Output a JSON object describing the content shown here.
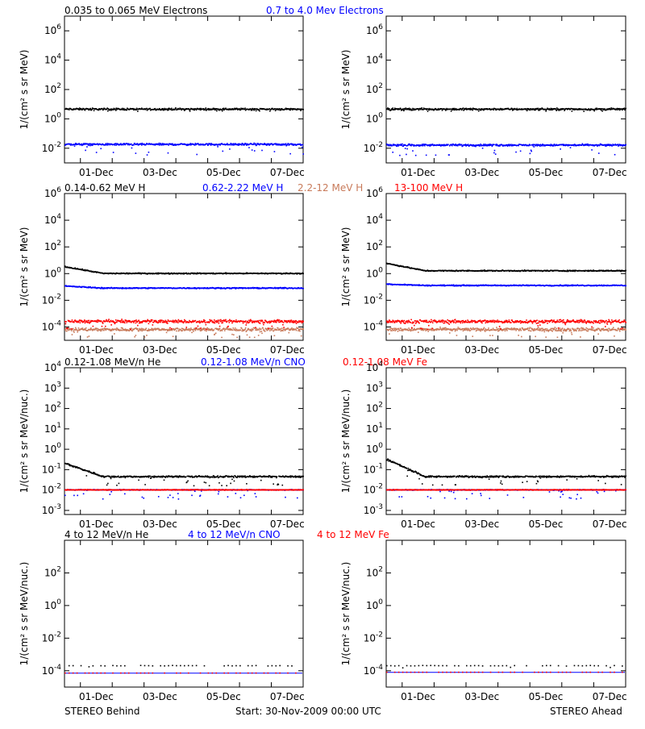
{
  "colors": {
    "black": "#000000",
    "blue": "#0000ff",
    "red": "#ff0000",
    "salmon": "#c87a5a"
  },
  "footer": {
    "left": "STEREO Behind",
    "center": "Start: 30-Nov-2009 00:00 UTC",
    "right": "STEREO Ahead"
  },
  "x_ticks": [
    "01-Dec",
    "03-Dec",
    "05-Dec",
    "07-Dec"
  ],
  "chart_data": [
    {
      "type": "scatter",
      "row": "electrons",
      "legend": [
        {
          "text": "0.035 to 0.065 MeV Electrons",
          "color": "black"
        },
        {
          "text": "0.7 to 4.0 Mev Electrons",
          "color": "blue"
        }
      ],
      "ylabel": "1/(cm² s sr MeV)",
      "ylim_log10": [
        -3,
        7
      ],
      "yticks": [
        "10^-2",
        "10^0",
        "10^2",
        "10^4",
        "10^6"
      ],
      "xlim_days": [
        0,
        7.5
      ],
      "panels": [
        {
          "spacecraft": "STEREO Behind",
          "series": [
            {
              "color": "black",
              "level_log10": 0.65,
              "scatter": 0.08,
              "outliers": 0.1
            },
            {
              "color": "blue",
              "level_log10": -1.75,
              "scatter": 0.08,
              "outliers": 0.5
            }
          ]
        },
        {
          "spacecraft": "STEREO Ahead",
          "series": [
            {
              "color": "black",
              "level_log10": 0.65,
              "scatter": 0.08,
              "outliers": 0.1
            },
            {
              "color": "blue",
              "level_log10": -1.8,
              "scatter": 0.08,
              "outliers": 0.5
            }
          ]
        }
      ]
    },
    {
      "type": "scatter",
      "row": "protons",
      "legend": [
        {
          "text": "0.14-0.62 MeV H",
          "color": "black"
        },
        {
          "text": "0.62-2.22 MeV H",
          "color": "blue"
        },
        {
          "text": "2.2-12 MeV H",
          "color": "salmon"
        },
        {
          "text": "13-100 MeV H",
          "color": "red"
        }
      ],
      "ylabel": "1/(cm² s sr MeV)",
      "ylim_log10": [
        -5,
        6
      ],
      "yticks": [
        "10^-4",
        "10^-2",
        "10^0",
        "10^2",
        "10^4",
        "10^6"
      ],
      "xlim_days": [
        0,
        7.5
      ],
      "panels": [
        {
          "spacecraft": "STEREO Behind",
          "series": [
            {
              "color": "black",
              "level_log10": 0.0,
              "start_log10": 0.5,
              "scatter": 0.05,
              "outliers": 0
            },
            {
              "color": "blue",
              "level_log10": -1.1,
              "start_log10": -0.95,
              "scatter": 0.05,
              "outliers": 0
            },
            {
              "color": "salmon",
              "level_log10": -4.2,
              "scatter": 0.15,
              "outliers": 0.4
            },
            {
              "color": "red",
              "level_log10": -3.6,
              "scatter": 0.15,
              "outliers": 0.4
            }
          ]
        },
        {
          "spacecraft": "STEREO Ahead",
          "series": [
            {
              "color": "black",
              "level_log10": 0.2,
              "start_log10": 0.75,
              "scatter": 0.05,
              "outliers": 0
            },
            {
              "color": "blue",
              "level_log10": -0.9,
              "start_log10": -0.8,
              "scatter": 0.05,
              "outliers": 0
            },
            {
              "color": "salmon",
              "level_log10": -4.2,
              "scatter": 0.15,
              "outliers": 0.4
            },
            {
              "color": "red",
              "level_log10": -3.6,
              "scatter": 0.15,
              "outliers": 0.4
            }
          ]
        }
      ]
    },
    {
      "type": "scatter",
      "row": "heavy-low",
      "legend": [
        {
          "text": "0.12-1.08 MeV/n He",
          "color": "black"
        },
        {
          "text": "0.12-1.08 MeV/n CNO",
          "color": "blue"
        },
        {
          "text": "0.12-1.08 MeV Fe",
          "color": "red"
        }
      ],
      "ylabel": "1/(cm² s sr MeV/nuc.)",
      "ylim_log10": [
        -3.2,
        4
      ],
      "yticks": [
        "10^-3",
        "10^-2",
        "10^-1",
        "10^0",
        "10^1",
        "10^2",
        "10^3",
        "10^4"
      ],
      "xlim_days": [
        0,
        7.5
      ],
      "panels": [
        {
          "spacecraft": "STEREO Behind",
          "series": [
            {
              "color": "black",
              "level_log10": -1.35,
              "start_log10": -0.7,
              "scatter": 0.05,
              "outliers": 0.3
            },
            {
              "color": "blue",
              "level_log10": -2.0,
              "scatter": 0.02,
              "outliers": 0.3
            },
            {
              "color": "red",
              "level_log10": -2.0,
              "scatter": 0.02,
              "outliers": 0
            }
          ]
        },
        {
          "spacecraft": "STEREO Ahead",
          "series": [
            {
              "color": "black",
              "level_log10": -1.35,
              "start_log10": -0.5,
              "scatter": 0.05,
              "outliers": 0.3
            },
            {
              "color": "blue",
              "level_log10": -2.0,
              "scatter": 0.02,
              "outliers": 0.3
            },
            {
              "color": "red",
              "level_log10": -2.0,
              "scatter": 0.02,
              "outliers": 0
            }
          ]
        }
      ]
    },
    {
      "type": "scatter",
      "row": "heavy-high",
      "legend": [
        {
          "text": "4 to 12 MeV/n He",
          "color": "black"
        },
        {
          "text": "4 to 12 MeV/n CNO",
          "color": "blue"
        },
        {
          "text": "4 to 12 MeV Fe",
          "color": "red"
        }
      ],
      "ylabel": "1/(cm² s sr MeV/nuc.)",
      "ylim_log10": [
        -5,
        4
      ],
      "yticks": [
        "10^-4",
        "10^-2",
        "10^0",
        "10^2"
      ],
      "xlim_days": [
        0,
        7.5
      ],
      "panels": [
        {
          "spacecraft": "STEREO Behind",
          "series": [
            {
              "color": "black",
              "level_log10": -3.7,
              "scatter": 0.02,
              "outliers": 0.1,
              "sparse": true
            },
            {
              "color": "blue",
              "level_log10": -4.15,
              "scatter": 0,
              "outliers": 0,
              "line": true
            },
            {
              "color": "red",
              "level_log10": -4.15,
              "scatter": 0,
              "outliers": 0,
              "sparse": true
            }
          ]
        },
        {
          "spacecraft": "STEREO Ahead",
          "series": [
            {
              "color": "black",
              "level_log10": -3.7,
              "scatter": 0.02,
              "outliers": 0.1,
              "sparse": true
            },
            {
              "color": "blue",
              "level_log10": -4.1,
              "scatter": 0,
              "outliers": 0,
              "line": true
            },
            {
              "color": "red",
              "level_log10": -4.1,
              "scatter": 0,
              "outliers": 0,
              "sparse": true
            }
          ]
        }
      ]
    }
  ]
}
